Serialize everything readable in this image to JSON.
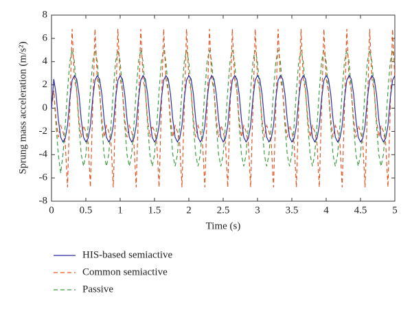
{
  "chart_data": {
    "type": "line",
    "xlabel": "Time (s)",
    "ylabel": "Sprung mass acceleration (m/s²)",
    "xlim": [
      0,
      5
    ],
    "xticks": [
      0,
      0.5,
      1,
      1.5,
      2,
      2.5,
      3,
      3.5,
      4,
      4.5,
      5
    ],
    "ylim": [
      -8,
      8
    ],
    "yticks": [
      -8,
      -6,
      -4,
      -2,
      0,
      2,
      4,
      6,
      8
    ],
    "grid": false,
    "legend": "below",
    "x": [
      0,
      0.0333,
      0.0667,
      0.1,
      0.1333,
      0.1667,
      0.2,
      0.2333,
      0.2667,
      0.3,
      0.3333,
      0.3667,
      0.4,
      0.4333,
      0.4667,
      0.5,
      0.5333,
      0.5667,
      0.6,
      0.6333,
      0.6667,
      0.7,
      0.7333,
      0.7667,
      0.8,
      0.8333,
      0.8667,
      0.9,
      0.9333,
      0.9667,
      1,
      1.0333,
      1.0667,
      1.1,
      1.1333,
      1.1667,
      1.2,
      1.2333,
      1.2667,
      1.3,
      1.3333,
      1.3667,
      1.4,
      1.4333,
      1.4667,
      1.5,
      1.5333,
      1.5667,
      1.6,
      1.6333,
      1.6667,
      1.7,
      1.7333,
      1.7667,
      1.8,
      1.8333,
      1.8667,
      1.9,
      1.9333,
      1.9667,
      2,
      2.0333,
      2.0667,
      2.1,
      2.1333,
      2.1667,
      2.2,
      2.2333,
      2.2667,
      2.3,
      2.3333,
      2.3667,
      2.4,
      2.4333,
      2.4667,
      2.5,
      2.5333,
      2.5667,
      2.6,
      2.6333,
      2.6667,
      2.7,
      2.7333,
      2.7667,
      2.8,
      2.8333,
      2.8667,
      2.9,
      2.9333,
      2.9667,
      3,
      3.0333,
      3.0667,
      3.1,
      3.1333,
      3.1667,
      3.2,
      3.2333,
      3.2667,
      3.3,
      3.3333,
      3.3667,
      3.4,
      3.4333,
      3.4667,
      3.5,
      3.5333,
      3.5667,
      3.6,
      3.6333,
      3.6667,
      3.7,
      3.7333,
      3.7667,
      3.8,
      3.8333,
      3.8667,
      3.9,
      3.9333,
      3.9667,
      4,
      4.0333,
      4.0667,
      4.1,
      4.1333,
      4.1667,
      4.2,
      4.2333,
      4.2667,
      4.3,
      4.3333,
      4.3667,
      4.4,
      4.4333,
      4.4667,
      4.5,
      4.5333,
      4.5667,
      4.6,
      4.6333,
      4.6667,
      4.7,
      4.7333,
      4.7667,
      4.8,
      4.8333,
      4.8667,
      4.9,
      4.9333,
      4.9667,
      5
    ],
    "series": [
      {
        "name": "HIS-based semiactive",
        "color": "#2b2b9e",
        "dash": "solid",
        "values": [
          0,
          2.5,
          1.2,
          -1,
          -2.5,
          -2.9,
          -2.6,
          -1.5,
          0.8,
          2.4,
          2.8,
          2.5,
          1.2,
          -1,
          -2.5,
          -2.9,
          -2.6,
          -1.5,
          0.8,
          2.4,
          2.8,
          2.5,
          1.2,
          -1,
          -2.5,
          -2.9,
          -2.6,
          -1.5,
          0.8,
          2.4,
          2.8,
          2.5,
          1.2,
          -1,
          -2.5,
          -2.9,
          -2.6,
          -1.5,
          0.8,
          2.4,
          2.8,
          2.5,
          1.2,
          -1,
          -2.5,
          -2.9,
          -2.6,
          -1.5,
          0.8,
          2.4,
          2.8,
          2.5,
          1.2,
          -1,
          -2.5,
          -2.9,
          -2.6,
          -1.5,
          0.8,
          2.4,
          2.8,
          2.5,
          1.2,
          -1,
          -2.5,
          -2.9,
          -2.6,
          -1.5,
          0.8,
          2.4,
          2.8,
          2.5,
          1.2,
          -1,
          -2.5,
          -2.9,
          -2.6,
          -1.5,
          0.8,
          2.4,
          2.8,
          2.5,
          1.2,
          -1,
          -2.5,
          -2.9,
          -2.6,
          -1.5,
          0.8,
          2.4,
          2.8,
          2.5,
          1.2,
          -1,
          -2.5,
          -2.9,
          -2.6,
          -1.5,
          0.8,
          2.4,
          2.8,
          2.5,
          1.2,
          -1,
          -2.5,
          -2.9,
          -2.6,
          -1.5,
          0.8,
          2.4,
          2.8,
          2.5,
          1.2,
          -1,
          -2.5,
          -2.9,
          -2.6,
          -1.5,
          0.8,
          2.4,
          2.8,
          2.5,
          1.2,
          -1,
          -2.5,
          -2.9,
          -2.6,
          -1.5,
          0.8,
          2.4,
          2.8,
          2.5,
          1.2,
          -1,
          -2.5,
          -2.9,
          -2.6,
          -1.5,
          0.8,
          2.4,
          2.8,
          2.5,
          1.2,
          -1,
          -2.5,
          -2.9,
          -2.6,
          -1.5,
          0.8,
          2.4,
          2.8
        ]
      },
      {
        "name": "Common semiactive",
        "color": "#e2521f",
        "dash": "dashed",
        "values": [
          0,
          1.5,
          -1,
          -2.5,
          -1.5,
          -2,
          -3,
          -6.8,
          0,
          6.8,
          2.5,
          1.5,
          -1,
          -2.5,
          -1.5,
          -2,
          -3,
          -6.8,
          0,
          6.8,
          2.5,
          1.5,
          -1,
          -2.5,
          -1.5,
          -2,
          -3,
          -6.8,
          0,
          6.8,
          2.5,
          1.5,
          -1,
          -2.5,
          -1.5,
          -2,
          -3,
          -6.8,
          0,
          6.8,
          2.5,
          1.5,
          -1,
          -2.5,
          -1.5,
          -2,
          -3,
          -6.8,
          0,
          6.8,
          2.5,
          1.5,
          -1,
          -2.5,
          -1.5,
          -2,
          -3,
          -6.8,
          0,
          6.8,
          2.5,
          1.5,
          -1,
          -2.5,
          -1.5,
          -2,
          -3,
          -6.8,
          0,
          6.8,
          2.5,
          1.5,
          -1,
          -2.5,
          -1.5,
          -2,
          -3,
          -6.8,
          0,
          6.8,
          2.5,
          1.5,
          -1,
          -2.5,
          -1.5,
          -2,
          -3,
          -6.8,
          0,
          6.8,
          2.5,
          1.5,
          -1,
          -2.5,
          -1.5,
          -2,
          -3,
          -6.8,
          0,
          6.8,
          2.5,
          1.5,
          -1,
          -2.5,
          -1.5,
          -2,
          -3,
          -6.8,
          0,
          6.8,
          2.5,
          1.5,
          -1,
          -2.5,
          -1.5,
          -2,
          -3,
          -6.8,
          0,
          6.8,
          2.5,
          1.5,
          -1,
          -2.5,
          -1.5,
          -2,
          -3,
          -6.8,
          0,
          6.8,
          2.5,
          1.5,
          -1,
          -2.5,
          -1.5,
          -2,
          -3,
          -6.8,
          0,
          6.8,
          2.5,
          1.5,
          -1,
          -2.5,
          -1.5,
          -2,
          -3,
          -6.8,
          0,
          6.8,
          2.5
        ]
      },
      {
        "name": "Passive",
        "color": "#3a9e3e",
        "dash": "dashed",
        "values": [
          0,
          1.5,
          -1.5,
          -4,
          -5.6,
          -4,
          -1.5,
          1.5,
          4,
          5,
          4,
          1.5,
          -1.5,
          -4,
          -5,
          -4,
          -1.5,
          1.5,
          4,
          5,
          4,
          1.5,
          -1.5,
          -4,
          -5,
          -4,
          -1.5,
          1.5,
          4,
          5,
          4,
          1.5,
          -1.5,
          -4,
          -5,
          -4,
          -1.5,
          1.5,
          4,
          5,
          4,
          1.5,
          -1.5,
          -4,
          -5,
          -4,
          -1.5,
          1.5,
          4,
          5,
          4,
          1.5,
          -1.5,
          -4,
          -5,
          -4,
          -1.5,
          1.5,
          4,
          5,
          4,
          1.5,
          -1.5,
          -4,
          -5,
          -4,
          -1.5,
          1.5,
          4,
          5,
          4,
          1.5,
          -1.5,
          -4,
          -5,
          -4,
          -1.5,
          1.5,
          4,
          5,
          4,
          1.5,
          -1.5,
          -4,
          -5,
          -4,
          -1.5,
          1.5,
          4,
          5,
          4,
          1.5,
          -1.5,
          -4,
          -5,
          -4,
          -1.5,
          1.5,
          4,
          5,
          4,
          1.5,
          -1.5,
          -4,
          -5,
          -4,
          -1.5,
          1.5,
          4,
          5,
          4,
          1.5,
          -1.5,
          -4,
          -5,
          -4,
          -1.5,
          1.5,
          4,
          5,
          4,
          1.5,
          -1.5,
          -4,
          -5,
          -4,
          -1.5,
          1.5,
          4,
          5,
          4,
          1.5,
          -1.5,
          -4,
          -5,
          -4,
          -1.5,
          1.5,
          4,
          5,
          4,
          1.5,
          -1.5,
          -4,
          -5,
          -4,
          -1.5,
          1.5,
          4,
          5,
          4
        ]
      }
    ]
  }
}
